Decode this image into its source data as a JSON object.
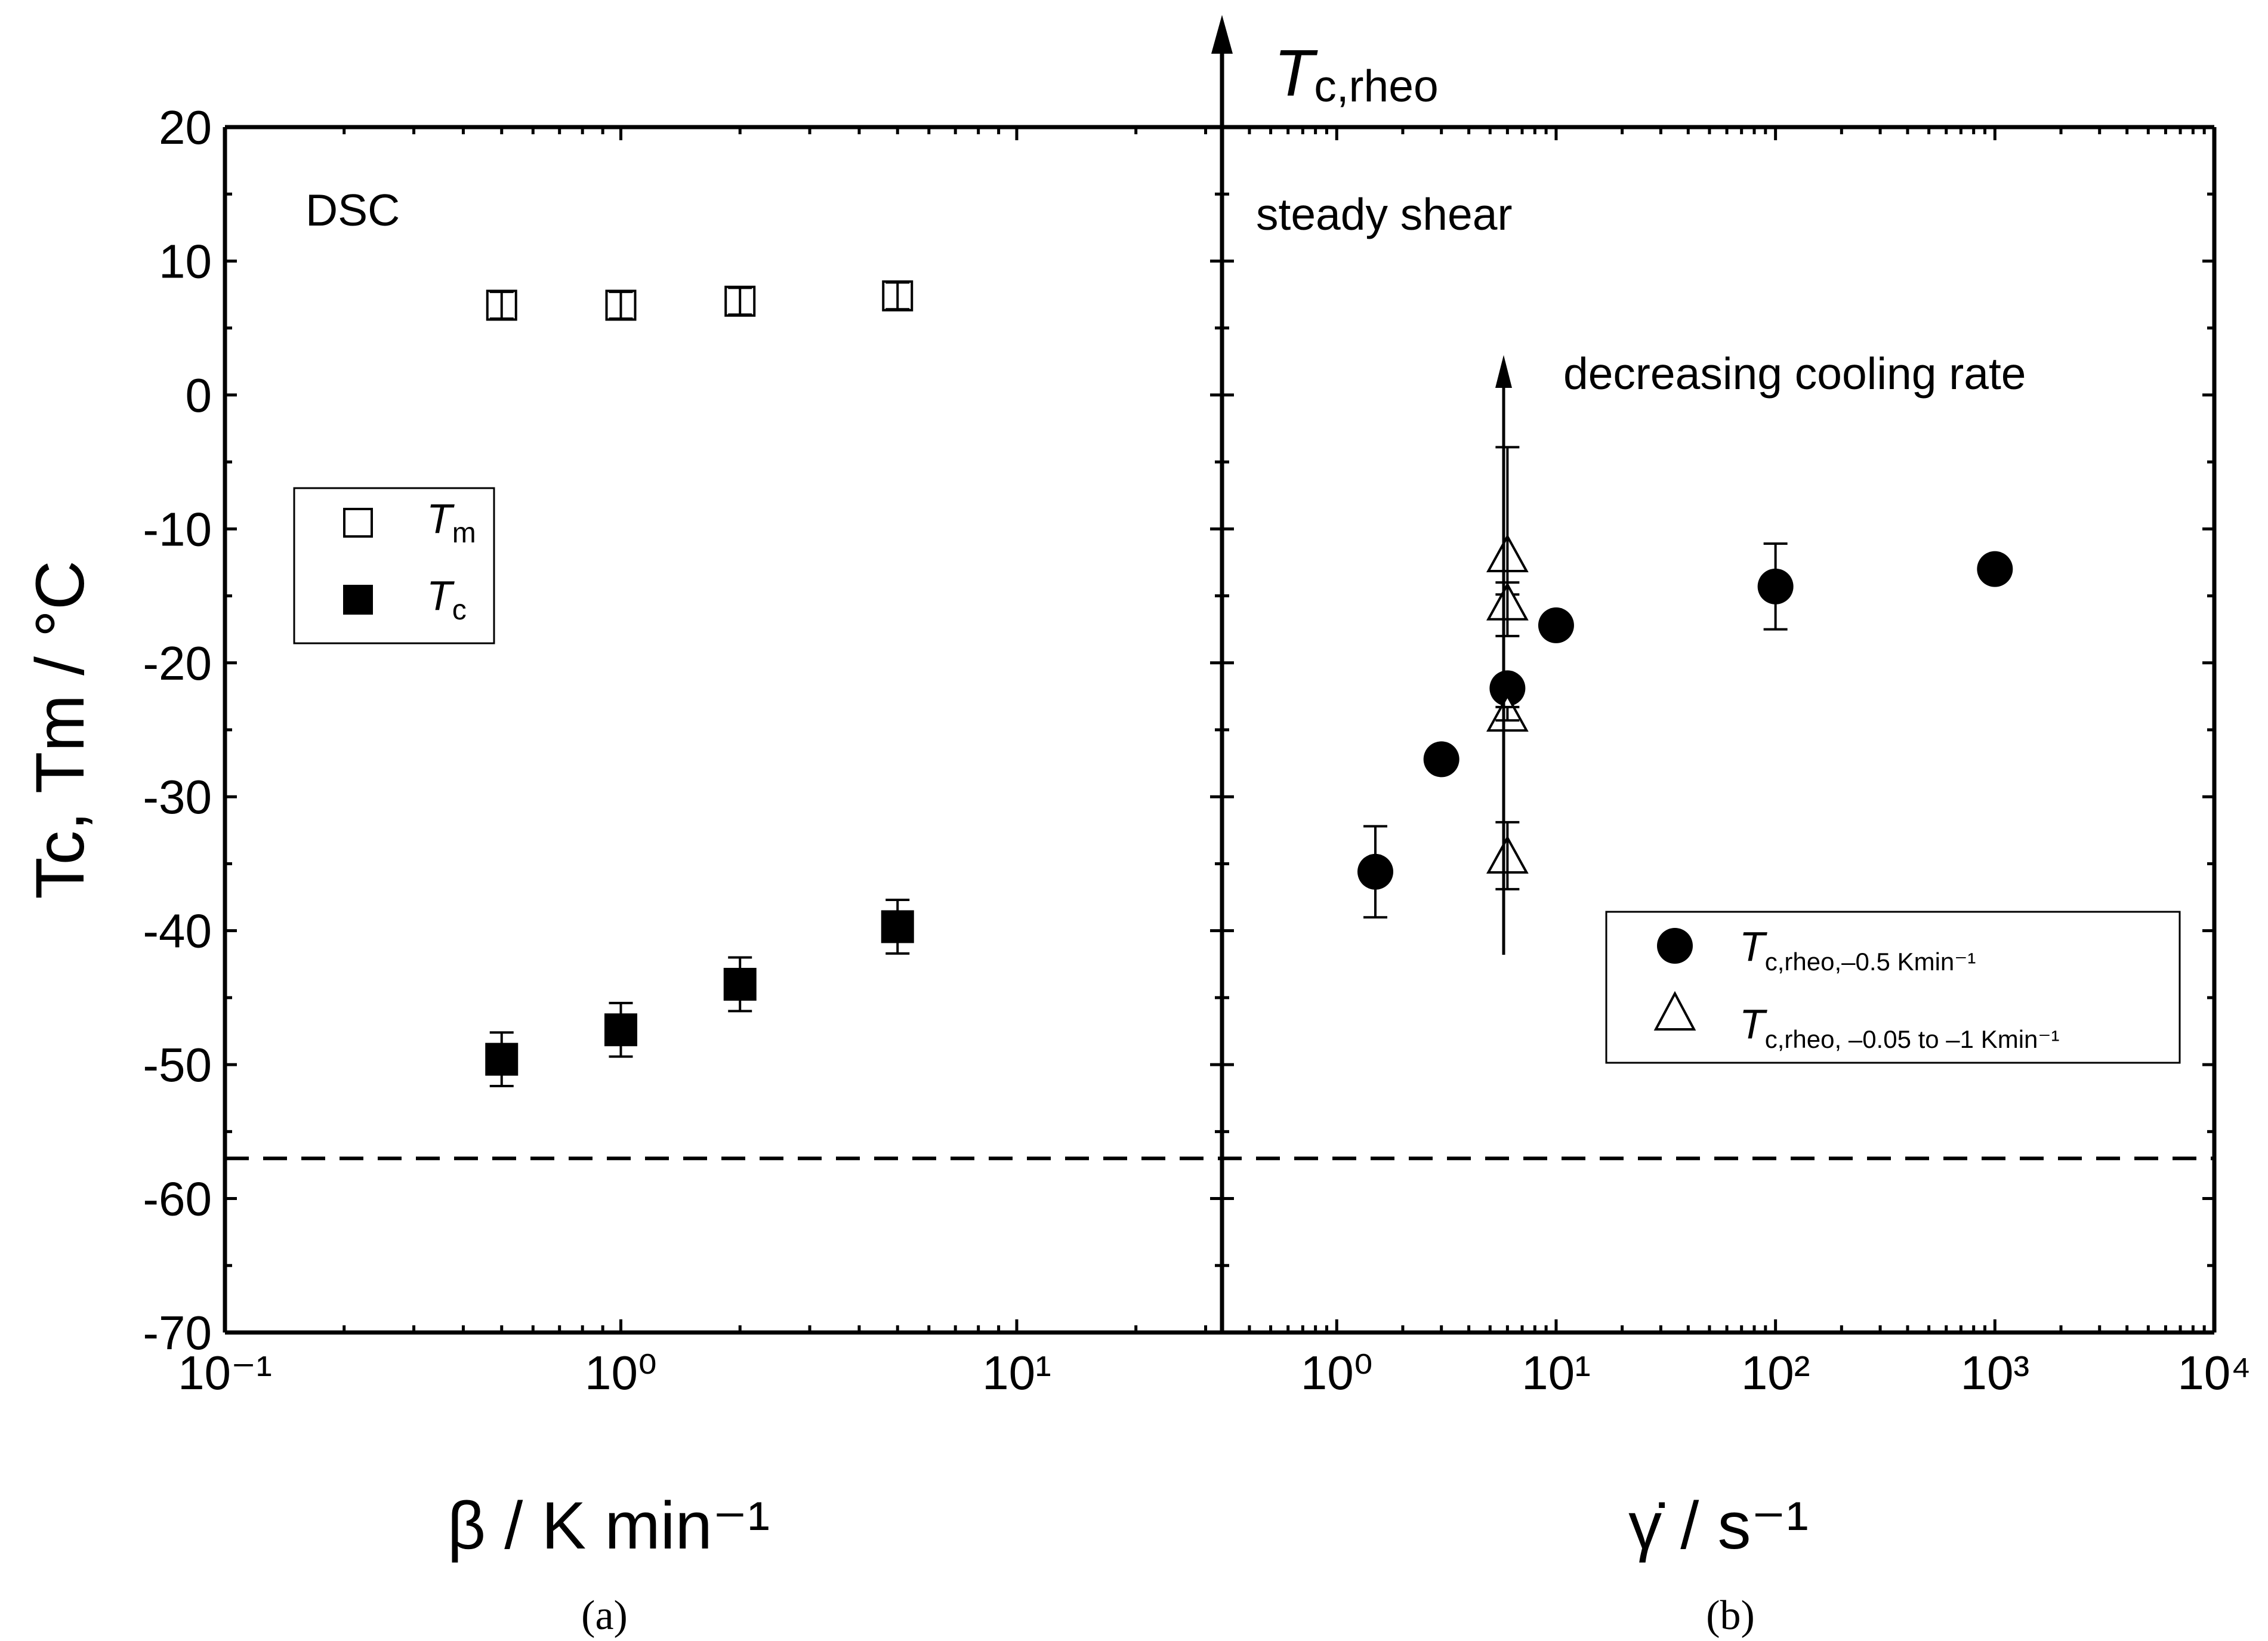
{
  "chart_data": [
    {
      "panel": "a",
      "type": "scatter",
      "caption": "(a)",
      "annotation": "DSC",
      "xscale": "log",
      "xlim": [
        0.1,
        33
      ],
      "ylim": [
        -70,
        20
      ],
      "xlabel": "β / K min⁻¹",
      "ylabel": "Tc, Tm / °C",
      "xtick_labels": [
        "10⁻¹",
        "10⁰",
        "10¹"
      ],
      "ytick_labels": [
        "20",
        "10",
        "0",
        "-10",
        "-20",
        "-30",
        "-40",
        "-50",
        "-60",
        "-70"
      ],
      "reference_line": -57,
      "legend": [
        {
          "symbol": "open-square",
          "label": "T",
          "sub": "m"
        },
        {
          "symbol": "filled-square",
          "label": "T",
          "sub": "c"
        }
      ],
      "series": [
        {
          "name": "Tm",
          "marker": "open-square",
          "x": [
            0.5,
            1,
            2,
            5
          ],
          "y": [
            6.7,
            6.7,
            7.0,
            7.4
          ],
          "err": [
            1.0,
            1.0,
            1.0,
            1.0
          ]
        },
        {
          "name": "Tc",
          "marker": "filled-square",
          "x": [
            0.5,
            1,
            2,
            5
          ],
          "y": [
            -49.6,
            -47.4,
            -44.0,
            -39.7
          ],
          "err": [
            2.0,
            2.0,
            2.0,
            2.0
          ]
        }
      ]
    },
    {
      "panel": "b",
      "type": "scatter",
      "caption": "(b)",
      "annotation": "steady shear",
      "top_axis_label": "T",
      "top_axis_sub": "c,rheo",
      "arrow_text": "decreasing cooling rate",
      "xscale": "log",
      "xlim": [
        0.3,
        10000
      ],
      "ylim": [
        -70,
        20
      ],
      "xlabel": "γ̇ / s⁻¹",
      "xtick_labels": [
        "10⁰",
        "10¹",
        "10²",
        "10³",
        "10⁴"
      ],
      "reference_line": -57,
      "legend": [
        {
          "symbol": "filled-circle",
          "label": "T",
          "sub": "c,rheo,–0.5 Kmin⁻¹"
        },
        {
          "symbol": "open-triangle",
          "label": "T",
          "sub": "c,rheo, –0.05 to –1 Kmin⁻¹"
        }
      ],
      "series": [
        {
          "name": "Tc,rheo,-0.5 Kmin-1",
          "marker": "filled-circle",
          "x": [
            1.5,
            3,
            6,
            10,
            100,
            1000
          ],
          "y": [
            -35.6,
            -27.2,
            -21.9,
            -17.2,
            -14.3,
            -13.0
          ],
          "err": [
            3.4,
            0,
            0,
            0,
            3.2,
            0
          ]
        },
        {
          "name": "Tc,rheo,-0.05 to -1 Kmin-1",
          "marker": "open-triangle",
          "x": [
            6,
            6,
            6,
            6
          ],
          "y": [
            -11.9,
            -15.5,
            -23.8,
            -34.4
          ],
          "err_up": [
            8.0,
            1.5,
            0.5,
            2.5
          ],
          "err_dn": [
            3.0,
            2.5,
            0.5,
            2.5
          ]
        }
      ]
    }
  ]
}
